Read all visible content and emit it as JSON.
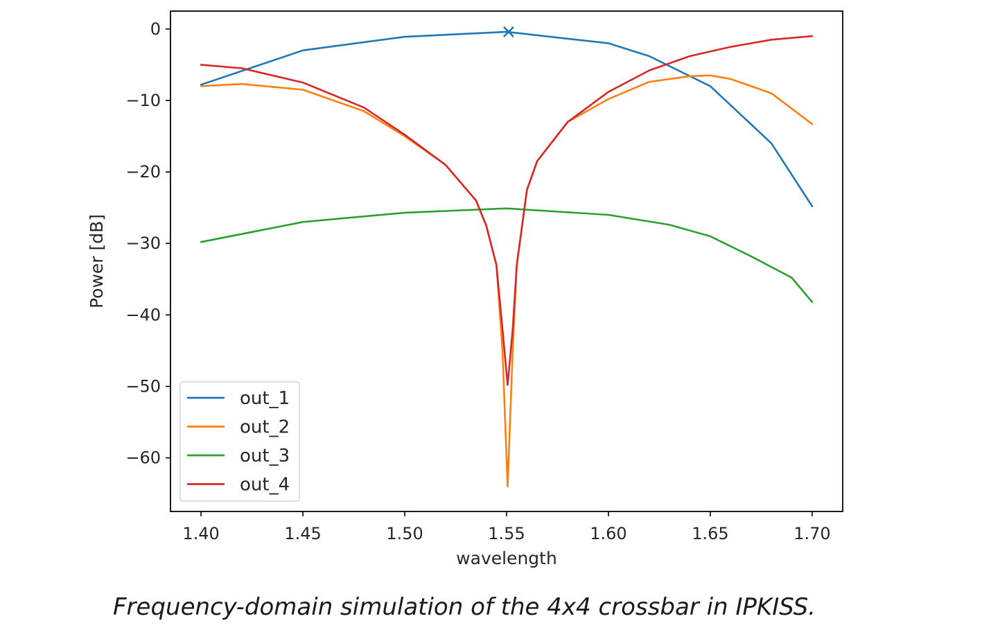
{
  "caption": "Frequency-domain simulation of the 4x4 crossbar in IPKISS.",
  "chart_data": {
    "type": "line",
    "title": "",
    "xlabel": "wavelength",
    "ylabel": "Power [dB]",
    "xlim": [
      1.385,
      1.715
    ],
    "ylim": [
      -67.5,
      2.5
    ],
    "xticks": [
      1.4,
      1.45,
      1.5,
      1.55,
      1.6,
      1.65,
      1.7
    ],
    "xtick_labels": [
      "1.40",
      "1.45",
      "1.50",
      "1.55",
      "1.60",
      "1.65",
      "1.70"
    ],
    "yticks": [
      0,
      -10,
      -20,
      -30,
      -40,
      -50,
      -60
    ],
    "ytick_labels": [
      "0",
      "−10",
      "−20",
      "−30",
      "−40",
      "−50",
      "−60"
    ],
    "grid": false,
    "legend_position": "lower-left",
    "series": [
      {
        "name": "out_1",
        "color": "#1f77b4",
        "x": [
          1.4,
          1.45,
          1.5,
          1.55,
          1.6,
          1.62,
          1.65,
          1.68,
          1.7
        ],
        "y": [
          -7.8,
          -3.0,
          -1.1,
          -0.4,
          -2.0,
          -3.8,
          -8.0,
          -16.0,
          -24.8
        ]
      },
      {
        "name": "out_2",
        "color": "#ff7f0e",
        "x": [
          1.4,
          1.42,
          1.45,
          1.48,
          1.5,
          1.52,
          1.535,
          1.54,
          1.545,
          1.548,
          1.5505,
          1.553,
          1.555,
          1.56,
          1.565,
          1.58,
          1.6,
          1.62,
          1.64,
          1.65,
          1.66,
          1.68,
          1.7
        ],
        "y": [
          -8.0,
          -7.7,
          -8.5,
          -11.5,
          -15.0,
          -19.0,
          -24.0,
          -27.5,
          -33.0,
          -45.0,
          -64.0,
          -45.0,
          -33.0,
          -22.5,
          -18.5,
          -13.0,
          -9.8,
          -7.4,
          -6.6,
          -6.5,
          -7.0,
          -9.0,
          -13.3
        ]
      },
      {
        "name": "out_3",
        "color": "#2ca02c",
        "x": [
          1.4,
          1.45,
          1.5,
          1.55,
          1.6,
          1.63,
          1.65,
          1.67,
          1.69,
          1.7
        ],
        "y": [
          -29.8,
          -27.0,
          -25.7,
          -25.1,
          -26.0,
          -27.4,
          -29.0,
          -31.8,
          -34.8,
          -38.2
        ]
      },
      {
        "name": "out_4",
        "color": "#d62728",
        "x": [
          1.4,
          1.42,
          1.45,
          1.48,
          1.5,
          1.52,
          1.535,
          1.54,
          1.545,
          1.548,
          1.5505,
          1.553,
          1.555,
          1.56,
          1.565,
          1.58,
          1.6,
          1.62,
          1.64,
          1.66,
          1.68,
          1.7
        ],
        "y": [
          -5.0,
          -5.5,
          -7.5,
          -11.0,
          -14.8,
          -19.0,
          -24.0,
          -27.5,
          -33.0,
          -42.0,
          -49.8,
          -42.0,
          -33.0,
          -22.5,
          -18.5,
          -13.0,
          -8.8,
          -5.8,
          -3.8,
          -2.5,
          -1.5,
          -1.0
        ]
      }
    ],
    "markers": [
      {
        "series": "out_1",
        "x": 1.551,
        "y": -0.4,
        "symbol": "x"
      }
    ]
  }
}
